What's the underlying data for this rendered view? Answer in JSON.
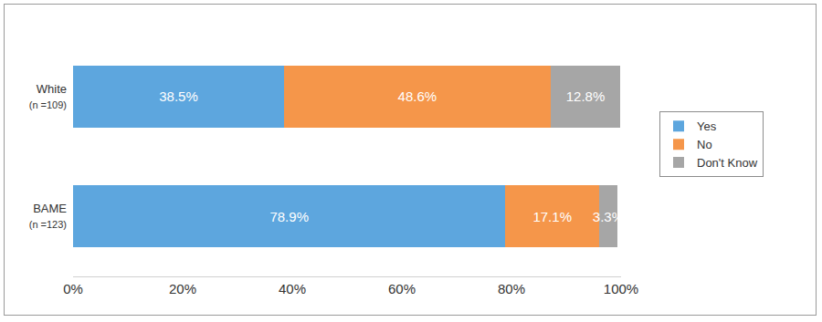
{
  "chart_data": {
    "type": "bar",
    "orientation": "horizontal",
    "stacked": true,
    "categories": [
      "White (n =109)",
      "BAME (n =123)"
    ],
    "series": [
      {
        "name": "Yes",
        "color": "#5da6de",
        "values": [
          38.5,
          78.9
        ],
        "value_labels": [
          "38.5%",
          "78.9%"
        ]
      },
      {
        "name": "No",
        "color": "#f5964a",
        "values": [
          48.6,
          17.1
        ],
        "value_labels": [
          "48.6%",
          "17.1%"
        ]
      },
      {
        "name": "Don't Know",
        "color": "#a6a6a6",
        "values": [
          12.8,
          3.3
        ],
        "value_labels": [
          "12.8%",
          "3.3%"
        ]
      }
    ],
    "xlim": [
      0,
      100
    ],
    "xticks": [
      {
        "value": 0,
        "label": "0%"
      },
      {
        "value": 20,
        "label": "20%"
      },
      {
        "value": 40,
        "label": "40%"
      },
      {
        "value": 60,
        "label": "60%"
      },
      {
        "value": 80,
        "label": "80%"
      },
      {
        "value": 100,
        "label": "100%"
      }
    ],
    "data_labels": true,
    "grid": false,
    "legend": "right"
  }
}
